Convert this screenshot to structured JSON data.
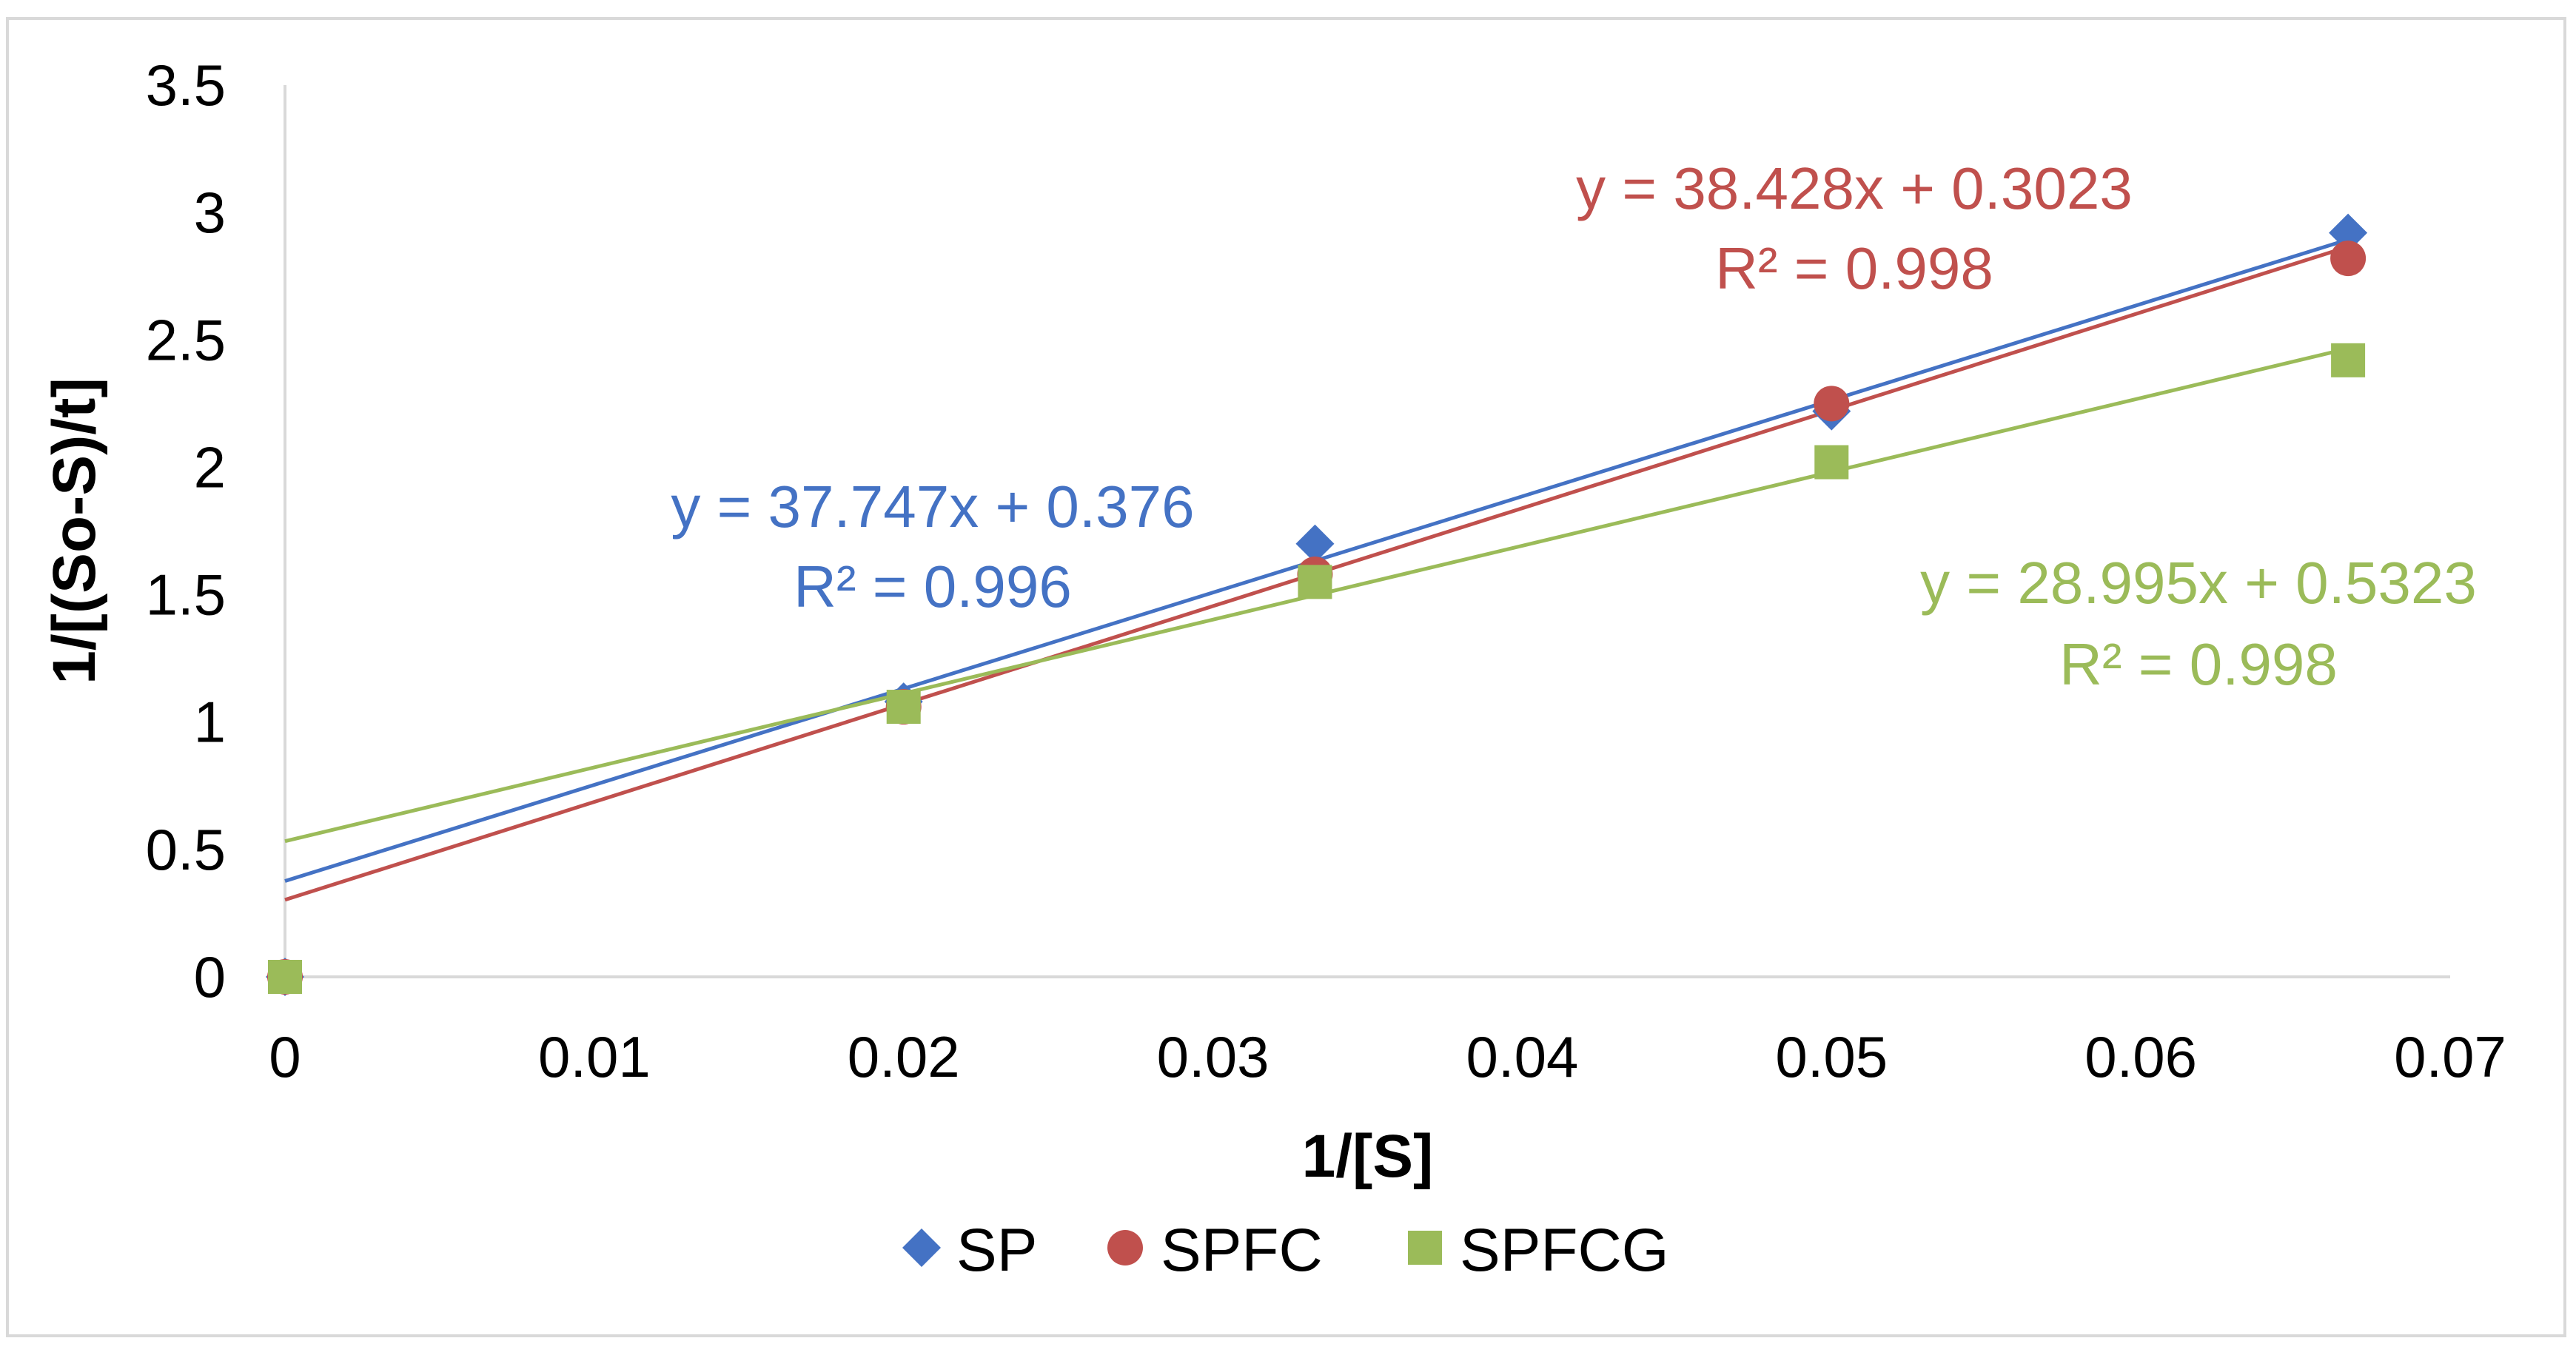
{
  "chart_data": {
    "type": "scatter",
    "title": "",
    "xlabel": "1/[S]",
    "ylabel": "1/[(So-S)/t]",
    "xlim": [
      0,
      0.07
    ],
    "ylim": [
      0,
      3.5
    ],
    "xticks": [
      0,
      0.01,
      0.02,
      0.03,
      0.04,
      0.05,
      0.06,
      0.07
    ],
    "yticks": [
      0,
      0.5,
      1,
      1.5,
      2,
      2.5,
      3,
      3.5
    ],
    "xtick_labels": [
      "0",
      "0.01",
      "0.02",
      "0.03",
      "0.04",
      "0.05",
      "0.06",
      "0.07"
    ],
    "ytick_labels": [
      "0",
      "0.5",
      "1",
      "1.5",
      "2",
      "2.5",
      "3",
      "3.5"
    ],
    "grid": false,
    "legend_position": "bottom",
    "series": [
      {
        "name": "SP",
        "marker": "diamond",
        "color": "#4472C4",
        "x": [
          0,
          0.02,
          0.0333,
          0.05,
          0.0667
        ],
        "y": [
          0,
          1.08,
          1.7,
          2.22,
          2.92
        ],
        "trendline": {
          "slope": 37.747,
          "intercept": 0.376,
          "x_range": [
            0,
            0.0667
          ]
        },
        "equation": "y = 37.747x + 0.376",
        "r2": "R² = 0.996"
      },
      {
        "name": "SPFC",
        "marker": "circle",
        "color": "#C0504D",
        "x": [
          0,
          0.02,
          0.0333,
          0.05,
          0.0667
        ],
        "y": [
          0,
          1.06,
          1.58,
          2.25,
          2.82
        ],
        "trendline": {
          "slope": 38.428,
          "intercept": 0.3023,
          "x_range": [
            0,
            0.0667
          ]
        },
        "equation": "y = 38.428x + 0.3023",
        "r2": "R² = 0.998"
      },
      {
        "name": "SPFCG",
        "marker": "square",
        "color": "#9BBB59",
        "x": [
          0,
          0.02,
          0.0333,
          0.05,
          0.0667
        ],
        "y": [
          0,
          1.06,
          1.55,
          2.02,
          2.42
        ],
        "trendline": {
          "slope": 28.995,
          "intercept": 0.5323,
          "x_range": [
            0,
            0.0667
          ]
        },
        "equation": "y = 28.995x + 0.5323",
        "r2": "R² = 0.998"
      }
    ]
  }
}
